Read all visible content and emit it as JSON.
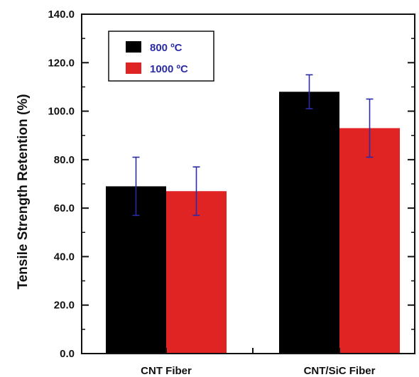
{
  "chart_data": {
    "type": "bar",
    "title": "",
    "xlabel": "",
    "ylabel": "Tensile Strength Retention (%)",
    "categories": [
      "CNT Fiber",
      "CNT/SiC Fiber"
    ],
    "series": [
      {
        "name": "800 ºC",
        "color": "#000000",
        "values": [
          69,
          108
        ],
        "error": [
          [
            57,
            81
          ],
          [
            101,
            115
          ]
        ]
      },
      {
        "name": "1000 ºC",
        "color": "#e02424",
        "values": [
          67,
          93
        ],
        "error": [
          [
            57,
            77
          ],
          [
            81,
            105
          ]
        ]
      }
    ],
    "ylim": [
      0,
      140
    ],
    "yticks": [
      "0.0",
      "20.0",
      "40.0",
      "60.0",
      "80.0",
      "100.0",
      "120.0",
      "140.0"
    ],
    "error_bar_color": "#2b2ba8",
    "legend_text_color": "#2b2ba8",
    "legend_position": "top-left",
    "grid": false
  }
}
